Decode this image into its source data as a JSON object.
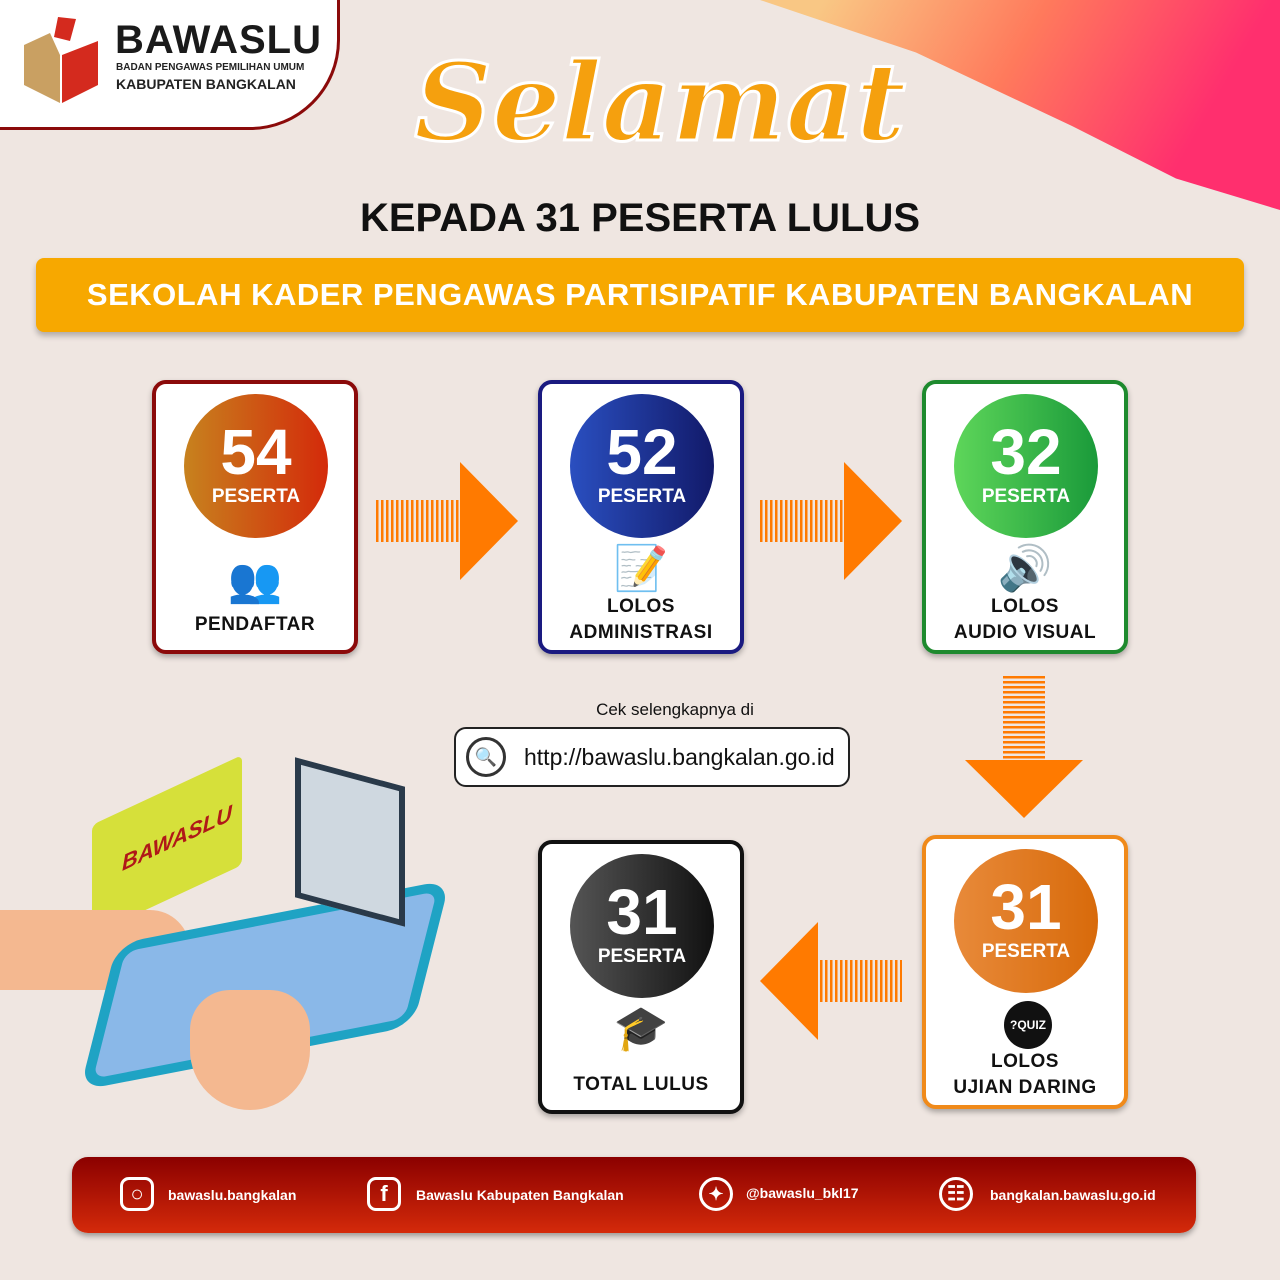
{
  "logo": {
    "title": "BAWASLU",
    "subtitle": "BADAN PENGAWAS PEMILIHAN UMUM",
    "region": "KABUPATEN BANGKALAN"
  },
  "headline": {
    "script": "Selamat",
    "line": "KEPADA 31 PESERTA LULUS"
  },
  "banner": "SEKOLAH KADER PENGAWAS PARTISIPATIF KABUPATEN BANGKALAN",
  "stages": [
    {
      "count": "54",
      "unit": "PESERTA",
      "label1": "PENDAFTAR",
      "label2": "",
      "icon": "users-icon",
      "color": "#8b0a0a"
    },
    {
      "count": "52",
      "unit": "PESERTA",
      "label1": "LOLOS",
      "label2": "ADMINISTRASI",
      "icon": "document-edit-icon",
      "color": "#1a1a80"
    },
    {
      "count": "32",
      "unit": "PESERTA",
      "label1": "LOLOS",
      "label2": "AUDIO VISUAL",
      "icon": "speaker-icon",
      "color": "#1e8a2e"
    },
    {
      "count": "31",
      "unit": "PESERTA",
      "label1": "LOLOS",
      "label2": "UJIAN DARING",
      "icon": "quiz-icon",
      "color": "#f08a1a"
    },
    {
      "count": "31",
      "unit": "PESERTA",
      "label1": "TOTAL LULUS",
      "label2": "",
      "icon": "graduation-cap-icon",
      "color": "#111111"
    }
  ],
  "link": {
    "caption": "Cek selengkapnya di",
    "url": "http://bawaslu.bangkalan.go.id"
  },
  "illustration": {
    "bubble_text": "BAWASLU"
  },
  "footer": [
    {
      "icon": "instagram-icon",
      "text": "bawaslu.bangkalan"
    },
    {
      "icon": "facebook-icon",
      "text": "Bawaslu Kabupaten Bangkalan"
    },
    {
      "icon": "twitter-icon",
      "text": "@bawaslu_bkl17"
    },
    {
      "icon": "globe-icon",
      "text": "bangkalan.bawaslu.go.id"
    }
  ]
}
